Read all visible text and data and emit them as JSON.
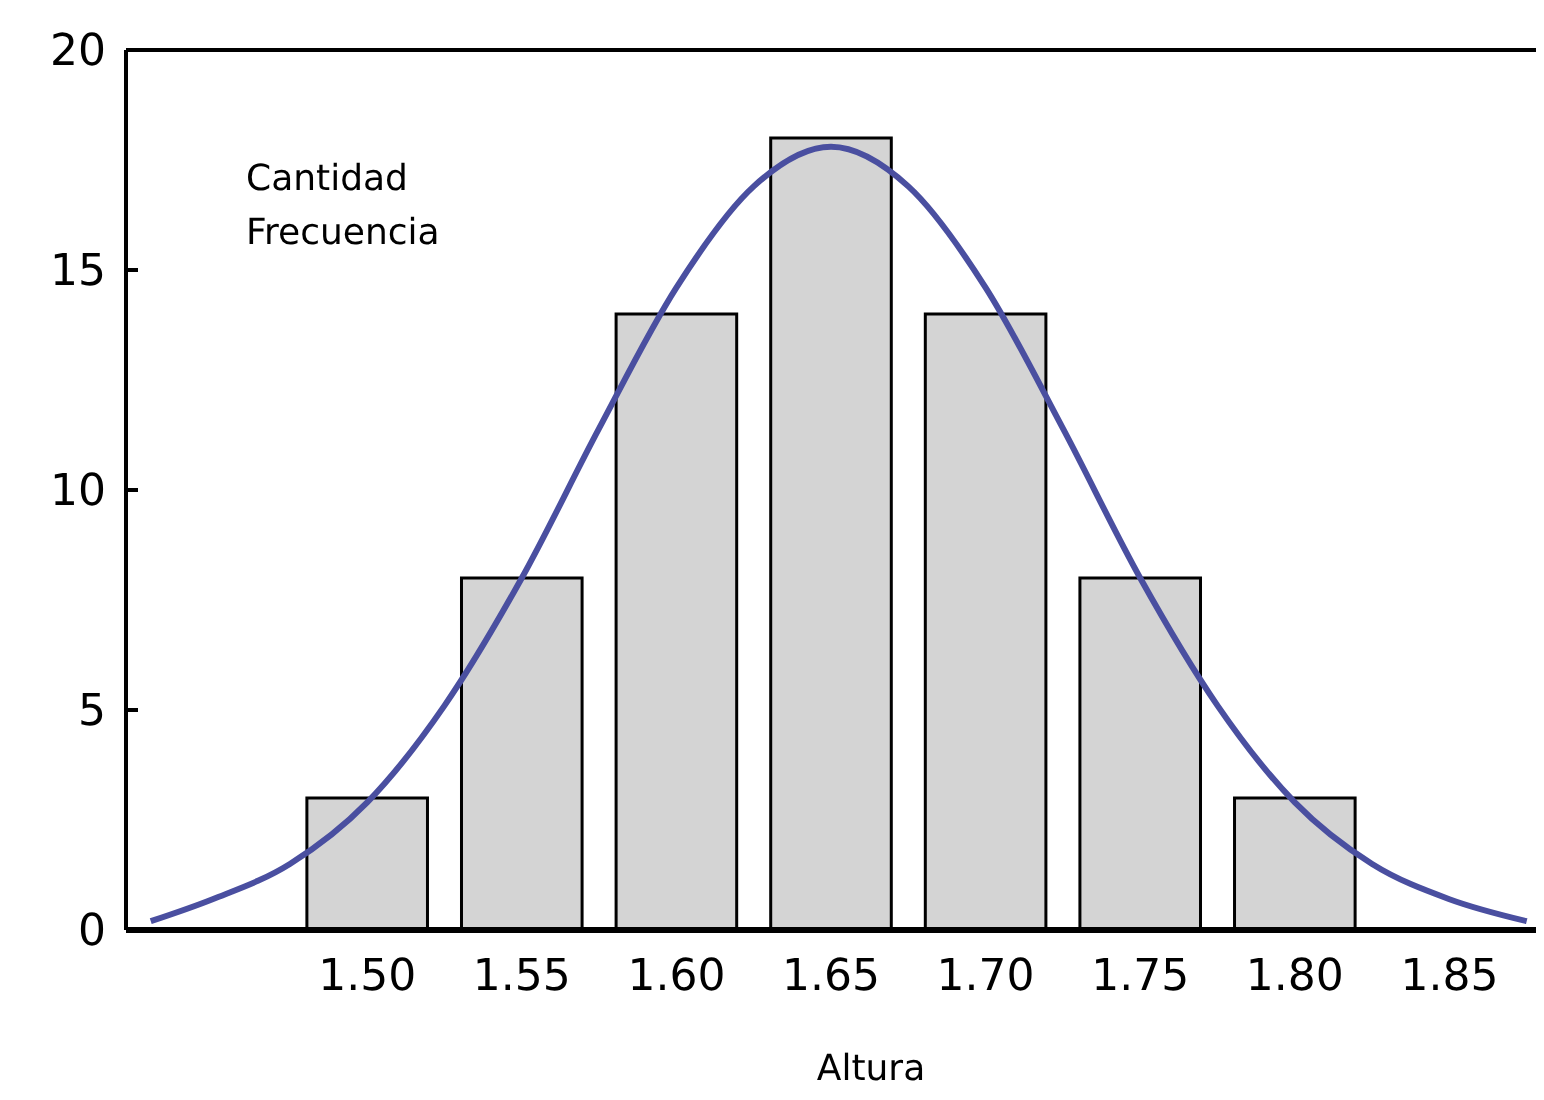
{
  "chart_data": {
    "type": "bar",
    "xlabel": "Altura",
    "ylabel": "Cantidad Frecuencia",
    "xlim": [
      1.422,
      1.878
    ],
    "xticks": [
      {
        "value": 1.5,
        "label": "1.50"
      },
      {
        "value": 1.55,
        "label": "1.55"
      },
      {
        "value": 1.6,
        "label": "1.60"
      },
      {
        "value": 1.65,
        "label": "1.65"
      },
      {
        "value": 1.7,
        "label": "1.70"
      },
      {
        "value": 1.75,
        "label": "1.75"
      },
      {
        "value": 1.8,
        "label": "1.80"
      },
      {
        "value": 1.85,
        "label": "1.85"
      }
    ],
    "ylim": [
      0,
      20
    ],
    "yticks": [
      0,
      5,
      10,
      15,
      20
    ],
    "grid": false,
    "series": [
      {
        "color": "#d4d4d4",
        "x": [
          1.5,
          1.55,
          1.6,
          1.65,
          1.7,
          1.75,
          1.8
        ],
        "values": [
          3,
          8,
          14,
          18,
          14,
          8,
          3
        ]
      },
      {
        "type": "line",
        "color": "#4a4fa0",
        "x": [
          1.43,
          1.45,
          1.475,
          1.5,
          1.525,
          1.55,
          1.575,
          1.6,
          1.625,
          1.65,
          1.675,
          1.7,
          1.725,
          1.75,
          1.775,
          1.8,
          1.825,
          1.85,
          1.875
        ],
        "values": [
          0.2,
          0.7,
          1.5,
          2.9,
          5.1,
          8.0,
          11.4,
          14.6,
          16.9,
          17.8,
          16.9,
          14.6,
          11.4,
          8.0,
          5.1,
          2.9,
          1.5,
          0.7,
          0.2
        ]
      }
    ]
  }
}
